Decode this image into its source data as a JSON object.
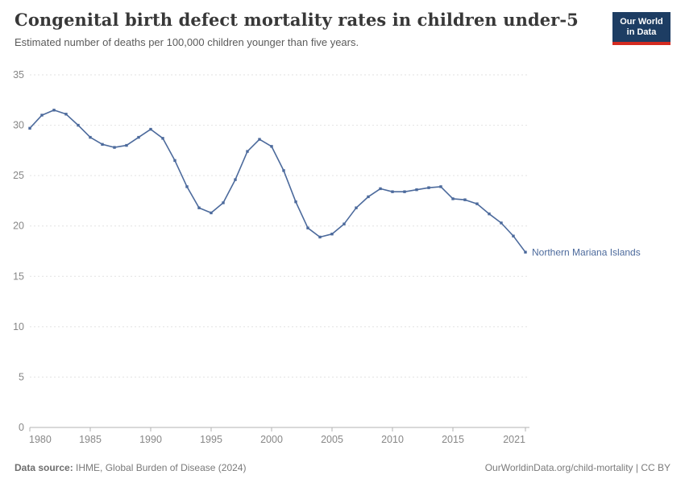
{
  "header": {
    "title": "Congenital birth defect mortality rates in children under-5",
    "subtitle": "Estimated number of deaths per 100,000 children younger than five years.",
    "logo": {
      "line1": "Our World",
      "line2": "in Data",
      "bg_color": "#1d3d63",
      "bar_color": "#d42b21"
    }
  },
  "chart_data": {
    "type": "line",
    "title": "Congenital birth defect mortality rates in children under-5",
    "xlabel": "",
    "ylabel": "",
    "xlim": [
      1980,
      2021
    ],
    "ylim": [
      0,
      35
    ],
    "yticks": [
      0,
      5,
      10,
      15,
      20,
      25,
      30,
      35
    ],
    "xticks": [
      1980,
      1985,
      1990,
      1995,
      2000,
      2005,
      2010,
      2015,
      2021
    ],
    "grid": "horizontal-dashed",
    "legend_position": "end-of-line-label",
    "x": [
      1980,
      1981,
      1982,
      1983,
      1984,
      1985,
      1986,
      1987,
      1988,
      1989,
      1990,
      1991,
      1992,
      1993,
      1994,
      1995,
      1996,
      1997,
      1998,
      1999,
      2000,
      2001,
      2002,
      2003,
      2004,
      2005,
      2006,
      2007,
      2008,
      2009,
      2010,
      2011,
      2012,
      2013,
      2014,
      2015,
      2016,
      2017,
      2018,
      2019,
      2020,
      2021
    ],
    "series": [
      {
        "name": "Northern Mariana Islands",
        "color": "#4c6a9c",
        "values": [
          29.7,
          31.0,
          31.5,
          31.1,
          30.0,
          28.8,
          28.1,
          27.8,
          28.0,
          28.8,
          29.6,
          28.7,
          26.5,
          23.9,
          21.8,
          21.3,
          22.3,
          24.6,
          27.4,
          28.6,
          27.9,
          25.5,
          22.4,
          19.8,
          18.9,
          19.2,
          20.2,
          21.8,
          22.9,
          23.7,
          23.4,
          23.4,
          23.6,
          23.8,
          23.9,
          22.7,
          22.6,
          22.2,
          21.2,
          20.3,
          19.0,
          17.4
        ]
      }
    ],
    "colors": {
      "gridline": "#e2e2e2",
      "axis": "#b3b3b3",
      "tick_text": "#878787"
    }
  },
  "footer": {
    "source_label": "Data source:",
    "source_text": " IHME, Global Burden of Disease (2024)",
    "link_text": "OurWorldinData.org/child-mortality | CC BY"
  }
}
